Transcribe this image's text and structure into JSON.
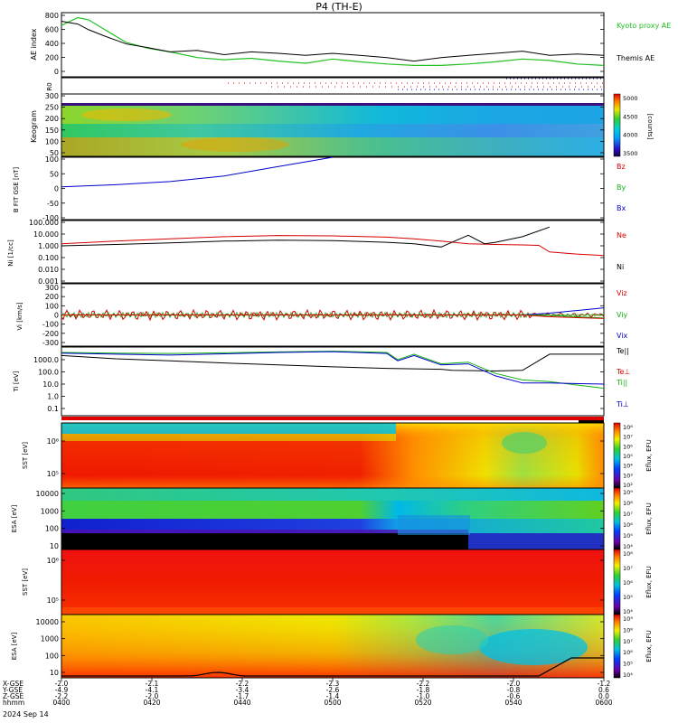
{
  "title": "P4 (TH-E)",
  "date": "2024 Sep 14",
  "colors": {
    "kyoto": "#22c022",
    "themis": "#000000",
    "red": "#d40000",
    "green": "#12b012",
    "blue": "#0000cc"
  },
  "time_ticks": [
    "0400",
    "0420",
    "0440",
    "0500",
    "0520",
    "0540",
    "0600"
  ],
  "ephemeris": {
    "labels": [
      "X-GSE",
      "Y-GSE",
      "Z-GSE",
      "hhmm"
    ],
    "x": [
      "-2.0",
      "-2.1",
      "-2.2",
      "-2.3",
      "-2.2",
      "-2.0",
      "-1.2"
    ],
    "y": [
      "-4.9",
      "-4.1",
      "-3.4",
      "-2.6",
      "-1.8",
      "-0.8",
      "0.6"
    ],
    "z": [
      "-2.2",
      "-2.0",
      "-1.7",
      "-1.4",
      "-1.0",
      "-0.6",
      "0.0"
    ]
  },
  "chart_data": [
    {
      "type": "line",
      "ylabel": "AE index",
      "yticks": [
        "800",
        "600",
        "400",
        "200",
        "0"
      ],
      "ylim": [
        -100,
        800
      ],
      "series": [
        {
          "name": "Kyoto proxy AE",
          "color": "#22c022",
          "x": [
            0,
            0.03,
            0.05,
            0.08,
            0.12,
            0.16,
            0.2,
            0.25,
            0.3,
            0.35,
            0.4,
            0.45,
            0.5,
            0.55,
            0.6,
            0.65,
            0.7,
            0.75,
            0.8,
            0.85,
            0.9,
            0.95,
            1.0
          ],
          "values": [
            620,
            730,
            700,
            560,
            380,
            300,
            250,
            170,
            140,
            160,
            120,
            90,
            150,
            110,
            80,
            60,
            60,
            80,
            110,
            150,
            130,
            80,
            60
          ]
        },
        {
          "name": "Themis AE",
          "color": "#000000",
          "x": [
            0,
            0.03,
            0.05,
            0.08,
            0.12,
            0.16,
            0.2,
            0.25,
            0.3,
            0.35,
            0.4,
            0.45,
            0.5,
            0.55,
            0.6,
            0.65,
            0.7,
            0.75,
            0.8,
            0.85,
            0.9,
            0.95,
            1.0
          ],
          "values": [
            680,
            640,
            560,
            470,
            360,
            310,
            250,
            270,
            210,
            250,
            230,
            200,
            230,
            200,
            170,
            120,
            170,
            200,
            230,
            260,
            200,
            220,
            200
          ]
        }
      ]
    },
    {
      "type": "scatter",
      "ylabel": "R0",
      "yticks": []
    },
    {
      "type": "heatmap",
      "ylabel": "Keogram",
      "yticks": [
        "300",
        "250",
        "200",
        "150",
        "100",
        "50"
      ],
      "colorbar": {
        "label": "[counts]",
        "ticks": [
          "5000",
          "4500",
          "4000",
          "3500"
        ]
      }
    },
    {
      "type": "line",
      "ylabel": "B FIT GSE [nT]",
      "yticks": [
        "100",
        "50",
        "0",
        "-50",
        "-100"
      ],
      "ylim": [
        -100,
        100
      ],
      "legend": [
        "Bz",
        "By",
        "Bx"
      ],
      "series": [
        {
          "name": "Bx",
          "color": "#0000cc",
          "x": [
            0,
            0.1,
            0.2,
            0.3,
            0.4,
            0.5
          ],
          "values": [
            5,
            12,
            22,
            40,
            70,
            100
          ]
        }
      ]
    },
    {
      "type": "line",
      "ylabel": "Ni [1/cc]",
      "yticks": [
        "100.000",
        "10.000",
        "1.000",
        "0.100",
        "0.010",
        "0.001"
      ],
      "ylim": [
        0.001,
        100
      ],
      "scale": "log",
      "legend": [
        "Ne",
        "Ni"
      ],
      "series": [
        {
          "name": "Ne",
          "color": "#d40000",
          "x": [
            0,
            0.1,
            0.2,
            0.3,
            0.4,
            0.5,
            0.6,
            0.65,
            0.7,
            0.75,
            0.8,
            0.85,
            0.88,
            0.9,
            0.95,
            1.0
          ],
          "values": [
            1.5,
            2.5,
            4.0,
            6.0,
            7.5,
            7.0,
            5.5,
            4.0,
            2.5,
            1.5,
            1.3,
            1.2,
            1.1,
            0.3,
            0.2,
            0.15
          ]
        },
        {
          "name": "Ni",
          "color": "#000000",
          "x": [
            0,
            0.1,
            0.2,
            0.3,
            0.4,
            0.5,
            0.6,
            0.65,
            0.7,
            0.72,
            0.75,
            0.78,
            0.8,
            0.85,
            0.9
          ],
          "values": [
            1.0,
            1.3,
            1.8,
            2.5,
            3.0,
            2.8,
            2.0,
            1.5,
            0.8,
            2.0,
            8.0,
            1.5,
            2.0,
            6.0,
            40.0
          ]
        }
      ]
    },
    {
      "type": "line",
      "ylabel": "Vi [km/s]",
      "yticks": [
        "300",
        "200",
        "100",
        "0",
        "-100",
        "-200",
        "-300"
      ],
      "ylim": [
        -350,
        350
      ],
      "legend": [
        "Viz",
        "Viy",
        "Vix"
      ],
      "series": [
        {
          "name": "Viz",
          "color": "#d40000",
          "x": [
            0,
            0.5,
            0.85,
            0.9,
            0.95,
            1.0
          ],
          "values": [
            0,
            0,
            0,
            -20,
            -30,
            -40
          ]
        },
        {
          "name": "Viy",
          "color": "#12b012",
          "x": [
            0,
            0.5,
            0.85,
            0.9,
            0.95,
            1.0
          ],
          "values": [
            0,
            0,
            0,
            -5,
            -20,
            -35
          ]
        },
        {
          "name": "Vix",
          "color": "#0000cc",
          "x": [
            0,
            0.5,
            0.85,
            0.9,
            0.95,
            1.0
          ],
          "values": [
            0,
            0,
            0,
            20,
            50,
            80
          ]
        }
      ]
    },
    {
      "type": "line",
      "ylabel": "Ti [eV]",
      "yticks": [
        "1000.0",
        "100.0",
        "10.0",
        "1.0",
        "0.1"
      ],
      "ylim": [
        0.05,
        5000
      ],
      "scale": "log",
      "legend": [
        "Te||",
        "Te⊥",
        "Ti||",
        "Ti⊥"
      ],
      "series": [
        {
          "name": "Te||",
          "color": "#000000",
          "x": [
            0,
            0.1,
            0.2,
            0.3,
            0.4,
            0.5,
            0.6,
            0.7,
            0.72,
            0.8,
            0.85,
            0.9,
            1.0
          ],
          "values": [
            1200,
            700,
            500,
            350,
            250,
            180,
            140,
            120,
            100,
            90,
            100,
            1500,
            1500
          ]
        },
        {
          "name": "Ti||",
          "color": "#12b012",
          "x": [
            0,
            0.1,
            0.2,
            0.3,
            0.4,
            0.5,
            0.6,
            0.62,
            0.65,
            0.7,
            0.75,
            0.8,
            0.85,
            0.9,
            1.0
          ],
          "values": [
            2000,
            1800,
            1700,
            1900,
            2200,
            2500,
            2000,
            600,
            1500,
            300,
            400,
            60,
            20,
            15,
            5
          ]
        },
        {
          "name": "Ti⊥",
          "color": "#0000cc",
          "x": [
            0,
            0.1,
            0.2,
            0.3,
            0.4,
            0.5,
            0.6,
            0.62,
            0.65,
            0.7,
            0.75,
            0.8,
            0.85,
            0.9,
            1.0
          ],
          "values": [
            1800,
            1500,
            1300,
            1600,
            2000,
            2300,
            1700,
            500,
            1200,
            250,
            300,
            40,
            12,
            12,
            10
          ]
        }
      ]
    },
    {
      "type": "heatmap",
      "ylabel": "SST [eV]",
      "yticks": [
        "10⁶",
        "10⁵"
      ],
      "colorbar": {
        "label": "Eflux, EFU",
        "ticks": [
          "10⁸",
          "10⁷",
          "10⁶",
          "10⁵",
          "10⁴",
          "10³",
          "10²"
        ]
      }
    },
    {
      "type": "heatmap",
      "ylabel": "ESA [eV]",
      "yticks": [
        "10000",
        "1000",
        "100",
        "10"
      ],
      "colorbar": {
        "label": "Eflux, EFU",
        "ticks": [
          "10⁹",
          "10⁸",
          "10⁷",
          "10⁶",
          "10⁵",
          "10⁴"
        ]
      }
    },
    {
      "type": "heatmap",
      "ylabel": "SST [eV]",
      "yticks": [
        "10⁶",
        "10⁵"
      ],
      "colorbar": {
        "label": "Eflux, EFU",
        "ticks": [
          "10⁸",
          "10⁷",
          "10⁶",
          "10⁵",
          "10⁴"
        ]
      }
    },
    {
      "type": "heatmap",
      "ylabel": "ESA [eV]",
      "yticks": [
        "10000",
        "1000",
        "100",
        "10"
      ],
      "colorbar": {
        "label": "Eflux, EFU",
        "ticks": [
          "10⁹",
          "10⁸",
          "10⁷",
          "10⁶",
          "10⁵",
          "10⁴"
        ]
      }
    }
  ]
}
